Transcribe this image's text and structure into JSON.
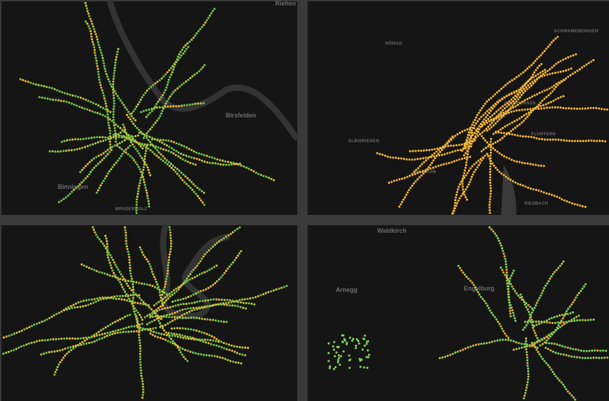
{
  "panels": [
    {
      "labels": [
        "Riehen",
        "Birsfelden",
        "Binningen",
        "BRUDERHOLZ"
      ]
    },
    {
      "labels": [
        "HÖNGG",
        "SCHWAMENDINGEN",
        "OBERSTRASS",
        "FLUNTERN",
        "ALBISRIEDEN",
        "WIEDIKON",
        "RIESBACH"
      ]
    },
    {
      "labels": []
    },
    {
      "labels": [
        "Waldkirch",
        "Arnegg",
        "Engelburg"
      ]
    }
  ]
}
